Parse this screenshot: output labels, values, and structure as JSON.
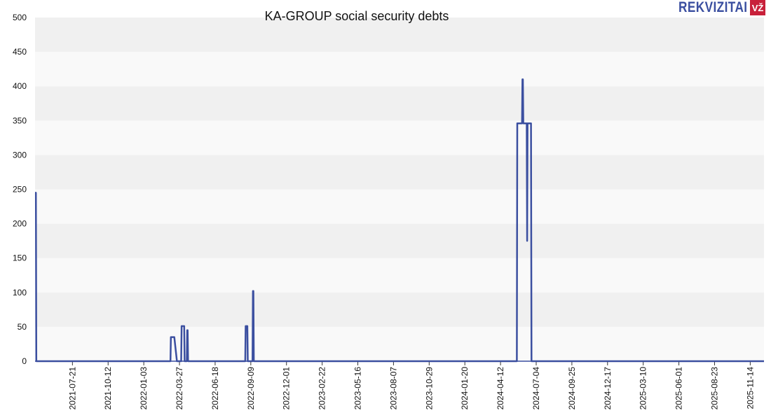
{
  "logo": {
    "text": "REKVIZITAI",
    "badge": "VŽ"
  },
  "chart_data": {
    "type": "line",
    "title": "KA-GROUP social security debts",
    "xlabel": "",
    "ylabel": "",
    "ylim": [
      0,
      500
    ],
    "yticks": [
      0,
      50,
      100,
      150,
      200,
      250,
      300,
      350,
      400,
      450,
      500
    ],
    "xlim": [
      "2021-04-25",
      "2025-12-16"
    ],
    "xticks": [
      "2021-07-21",
      "2021-10-12",
      "2022-01-03",
      "2022-03-27",
      "2022-06-18",
      "2022-09-09",
      "2022-12-01",
      "2023-02-22",
      "2023-05-16",
      "2023-08-07",
      "2023-10-29",
      "2024-01-20",
      "2024-04-12",
      "2024-07-04",
      "2024-09-25",
      "2024-12-17",
      "2025-03-10",
      "2025-06-01",
      "2025-08-23",
      "2025-11-14"
    ],
    "grid": "horizontal bands",
    "line_color": "#3b4fa0",
    "series": [
      {
        "x": [
          "2021-04-25",
          "2021-04-27",
          "2021-04-28",
          "2022-03-06",
          "2022-03-07",
          "2022-03-14",
          "2022-03-15",
          "2022-03-21",
          "2022-03-31",
          "2022-04-01",
          "2022-04-07",
          "2022-04-08",
          "2022-04-13",
          "2022-04-14",
          "2022-04-15",
          "2022-04-16",
          "2022-08-27",
          "2022-08-28",
          "2022-09-01",
          "2022-09-02",
          "2022-09-13",
          "2022-09-14",
          "2022-09-15",
          "2022-09-16",
          "2024-05-20",
          "2024-05-21",
          "2024-06-01",
          "2024-06-02",
          "2024-06-03",
          "2024-06-04",
          "2024-06-12",
          "2024-06-13",
          "2024-06-14",
          "2024-06-21",
          "2024-06-22",
          "2024-06-23",
          "2025-12-16"
        ],
        "y": [
          245,
          245,
          0,
          0,
          35,
          35,
          35,
          0,
          0,
          51,
          51,
          0,
          0,
          45,
          45,
          0,
          0,
          51,
          51,
          0,
          0,
          102,
          102,
          0,
          0,
          346,
          346,
          410,
          410,
          346,
          346,
          175,
          346,
          346,
          346,
          0,
          0
        ]
      }
    ]
  }
}
